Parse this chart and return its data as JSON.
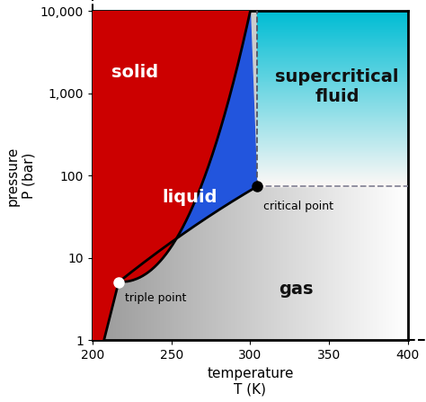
{
  "xlabel": "temperature\nT (K)",
  "ylabel": "pressure\nP (bar)",
  "xlim": [
    200,
    400
  ],
  "ylim_log": [
    1,
    10000
  ],
  "xticks": [
    200,
    250,
    300,
    350,
    400
  ],
  "yticks": [
    1,
    10,
    100,
    1000,
    10000
  ],
  "ytick_labels": [
    "1",
    "10",
    "100",
    "1,000",
    "10,000"
  ],
  "triple_point": [
    216.6,
    5.1
  ],
  "critical_point": [
    304.2,
    73.8
  ],
  "solid_color": "#cc0000",
  "liquid_color": "#2255dd",
  "label_solid": "solid",
  "label_liquid": "liquid",
  "label_gas": "gas",
  "label_supercritical": "supercritical\nfluid",
  "label_triple": "triple point",
  "label_critical": "critical point",
  "label_fontsize": 14,
  "axis_label_fontsize": 11,
  "tick_fontsize": 10
}
